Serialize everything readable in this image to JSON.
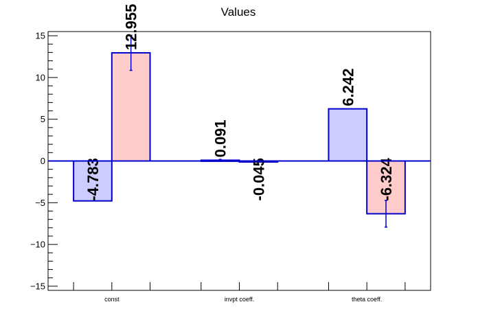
{
  "chart_data": {
    "type": "bar",
    "title": "Values",
    "categories": [
      "const",
      "invpt coeff.",
      "theta coeff."
    ],
    "series": [
      {
        "values": [
          -4.783,
          0.091,
          6.242
        ],
        "errors": [
          0.0,
          0.1,
          0.0
        ],
        "fill": "#ccccff",
        "stroke": "#0000cc"
      },
      {
        "values": [
          12.955,
          -0.045,
          -6.324
        ],
        "errors": [
          2.1,
          0.1,
          1.6
        ],
        "fill": "#ffcccc",
        "stroke": "#0000cc"
      }
    ],
    "value_labels": [
      "-4.783",
      "0.091",
      "6.242",
      "12.955",
      "-0.045",
      "-6.324"
    ],
    "ylim": [
      -15.5,
      15.5
    ],
    "yticks": [
      -15,
      -10,
      -5,
      0,
      5,
      10,
      15
    ],
    "ytick_labels": [
      "−15",
      "−10",
      "−5",
      "0",
      "5",
      "10",
      "15"
    ],
    "grid": false,
    "legend": "none",
    "colors": {
      "axis": "#000000",
      "zero_line": "#0000cc"
    }
  }
}
